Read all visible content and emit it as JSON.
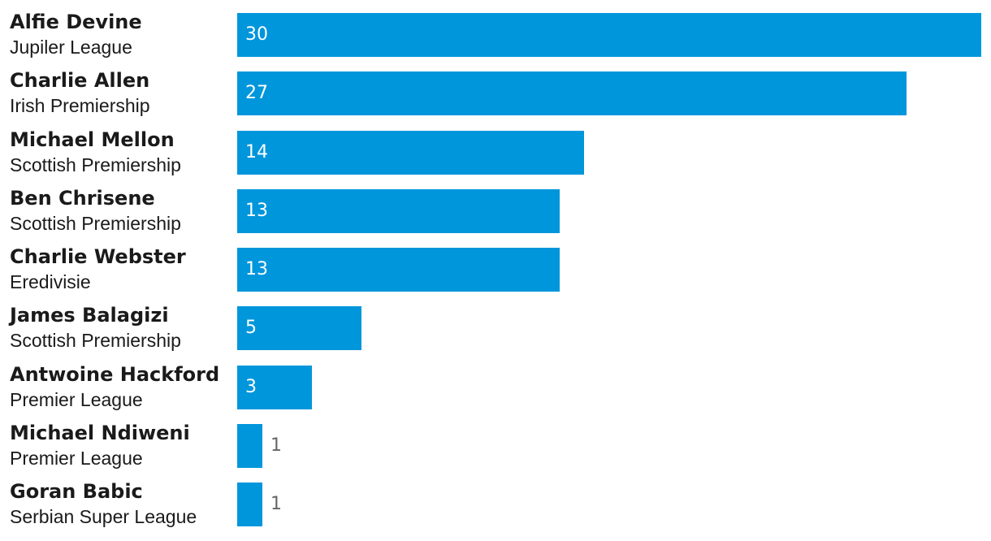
{
  "chart_data": {
    "type": "bar",
    "orientation": "horizontal",
    "categories": [
      "Alfie Devine",
      "Charlie Allen",
      "Michael Mellon",
      "Ben Chrisene",
      "Charlie Webster",
      "James Balagizi",
      "Antwoine Hackford",
      "Michael Ndiweni",
      "Goran Babic"
    ],
    "subcategories": [
      "Jupiler League",
      "Irish Premiership",
      "Scottish Premiership",
      "Scottish Premiership",
      "Eredivisie",
      "Scottish Premiership",
      "Premier League",
      "Premier League",
      "Serbian Super League"
    ],
    "values": [
      30,
      27,
      14,
      13,
      13,
      5,
      3,
      1,
      1
    ],
    "xlim": [
      0,
      30
    ],
    "grid": false,
    "legend": "none",
    "bar_color": "#0096db",
    "title": "",
    "xlabel": "",
    "ylabel": ""
  }
}
